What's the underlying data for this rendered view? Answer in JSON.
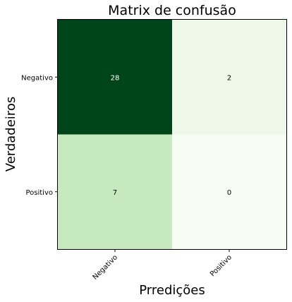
{
  "chart_data": {
    "type": "heatmap",
    "title": "Matrix de confusão",
    "xlabel": "Prredições",
    "ylabel": "Verdadeiros",
    "x_categories": [
      "Negativo",
      "Positivo"
    ],
    "y_categories": [
      "Negativo",
      "Positivo"
    ],
    "values": [
      [
        28,
        2
      ],
      [
        7,
        0
      ]
    ],
    "colormap": "Greens",
    "value_range": [
      0,
      28
    ],
    "grid": false,
    "legend": "none"
  }
}
